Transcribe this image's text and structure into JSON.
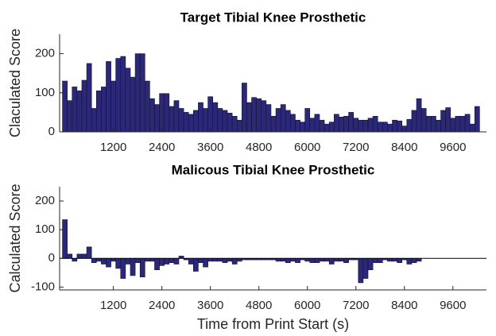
{
  "chart_data": [
    {
      "type": "bar",
      "title": "Target Tibial Knee Prosthetic",
      "y_label": "Claculated Score",
      "color": "#2b2878",
      "x": [
        0,
        120,
        240,
        360,
        480,
        600,
        720,
        840,
        960,
        1080,
        1200,
        1320,
        1440,
        1560,
        1680,
        1800,
        1920,
        2040,
        2160,
        2280,
        2400,
        2520,
        2640,
        2760,
        2880,
        3000,
        3120,
        3240,
        3360,
        3480,
        3600,
        3720,
        3840,
        3960,
        4080,
        4200,
        4320,
        4440,
        4560,
        4680,
        4800,
        4920,
        5040,
        5160,
        5280,
        5400,
        5520,
        5640,
        5760,
        5880,
        6000,
        6120,
        6240,
        6360,
        6480,
        6600,
        6720,
        6840,
        6960,
        7080,
        7200,
        7320,
        7440,
        7560,
        7680,
        7800,
        7920,
        8040,
        8160,
        8280,
        8400,
        8520,
        8640,
        8760,
        8880,
        9000,
        9120,
        9240,
        9360,
        9480,
        9600,
        9720,
        9840,
        9960,
        10080,
        10200
      ],
      "values": [
        130,
        80,
        115,
        105,
        132,
        175,
        60,
        105,
        115,
        180,
        130,
        188,
        193,
        163,
        140,
        200,
        200,
        130,
        85,
        70,
        98,
        98,
        65,
        80,
        60,
        50,
        45,
        55,
        75,
        60,
        90,
        75,
        60,
        55,
        48,
        40,
        30,
        125,
        75,
        88,
        85,
        80,
        70,
        40,
        60,
        70,
        55,
        45,
        30,
        25,
        60,
        35,
        45,
        30,
        20,
        25,
        45,
        38,
        40,
        50,
        35,
        30,
        30,
        35,
        40,
        25,
        25,
        20,
        30,
        28,
        15,
        32,
        55,
        85,
        60,
        40,
        40,
        30,
        55,
        62,
        35,
        40,
        40,
        45,
        20,
        65
      ],
      "xlim": [
        -130,
        10430
      ],
      "xticks": [
        1200,
        2400,
        3600,
        4800,
        6000,
        7200,
        8400,
        9600
      ],
      "ylim": [
        0,
        250
      ],
      "yticks": [
        0,
        100,
        200
      ]
    },
    {
      "type": "bar",
      "title": "Malicous Tibial Knee Prosthetic",
      "x_label": "Time from Print Start (s)",
      "y_label": "Calculated Score",
      "color": "#2b2878",
      "x": [
        0,
        120,
        240,
        360,
        480,
        600,
        720,
        840,
        960,
        1080,
        1200,
        1320,
        1440,
        1560,
        1680,
        1800,
        1920,
        2040,
        2160,
        2280,
        2400,
        2520,
        2640,
        2760,
        2880,
        3000,
        3120,
        3240,
        3360,
        3480,
        3600,
        3720,
        3840,
        3960,
        4080,
        4200,
        4320,
        4440,
        4560,
        4680,
        4800,
        4920,
        5040,
        5160,
        5280,
        5400,
        5520,
        5640,
        5760,
        5880,
        6000,
        6120,
        6240,
        6360,
        6480,
        6600,
        6720,
        6840,
        6960,
        7080,
        7200,
        7320,
        7440,
        7560,
        7680,
        7800,
        7920,
        8040,
        8160,
        8280,
        8400,
        8520,
        8640,
        8760
      ],
      "values": [
        135,
        15,
        -10,
        15,
        15,
        40,
        -15,
        -10,
        -20,
        -30,
        -10,
        -35,
        -70,
        -20,
        -60,
        -15,
        -65,
        -10,
        -10,
        -40,
        -25,
        -20,
        -15,
        -20,
        8,
        -5,
        -20,
        -45,
        -15,
        -30,
        -10,
        -10,
        -10,
        -15,
        -10,
        -20,
        -10,
        -5,
        -5,
        -5,
        -5,
        -5,
        -5,
        -5,
        -10,
        -10,
        -15,
        -10,
        -15,
        -5,
        -10,
        -15,
        -15,
        -10,
        -10,
        -20,
        -10,
        -10,
        -15,
        -5,
        -5,
        -85,
        -70,
        -40,
        -15,
        -15,
        -5,
        -10,
        -10,
        -15,
        -5,
        -20,
        -15,
        -10
      ],
      "xlim": [
        -130,
        10430
      ],
      "xticks": [
        1200,
        2400,
        3600,
        4800,
        6000,
        7200,
        8400,
        9600
      ],
      "ylim": [
        -110,
        250
      ],
      "yticks": [
        -100,
        0,
        100,
        200
      ]
    }
  ]
}
